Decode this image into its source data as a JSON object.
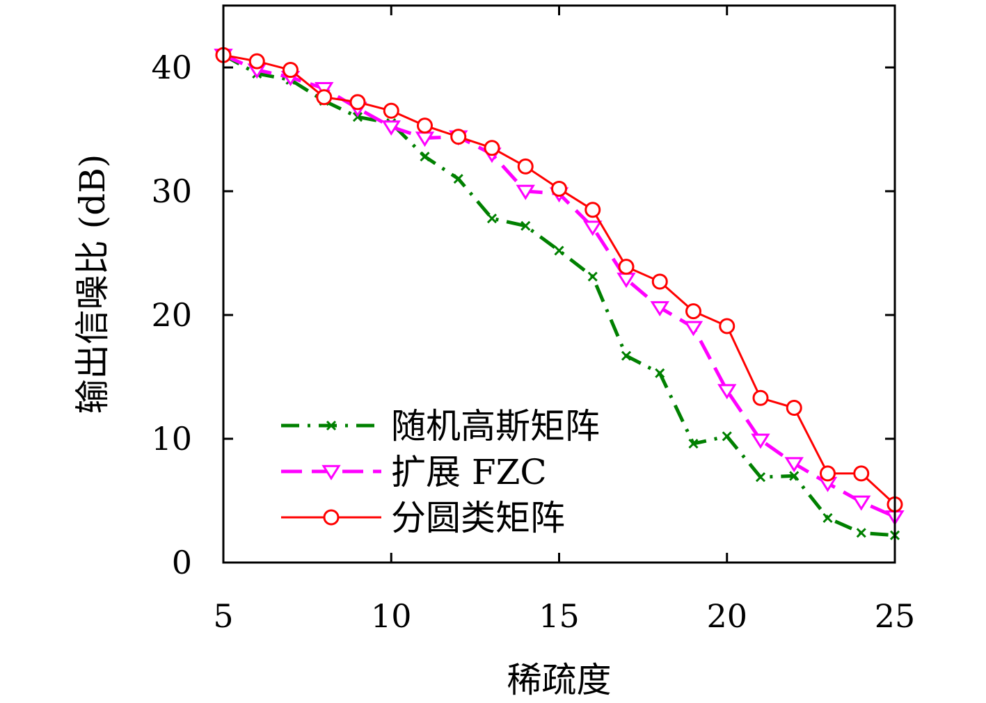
{
  "chart_data": {
    "type": "line",
    "xlabel": "稀疏度",
    "ylabel": "输出信噪比 (dB)",
    "xlim": [
      5,
      25
    ],
    "ylim": [
      0,
      45
    ],
    "xticks": [
      5,
      10,
      15,
      20,
      25
    ],
    "yticks": [
      0,
      10,
      20,
      30,
      40
    ],
    "grid": false,
    "legend_position": "bottom-left",
    "x": [
      5,
      6,
      7,
      8,
      9,
      10,
      11,
      12,
      13,
      14,
      15,
      16,
      17,
      18,
      19,
      20,
      21,
      22,
      23,
      24,
      25
    ],
    "series": [
      {
        "name": "随机高斯矩阵",
        "color": "#008000",
        "dash": "dash-dot",
        "marker": "cross",
        "values": [
          41.0,
          39.5,
          39.0,
          37.3,
          36.0,
          35.5,
          32.8,
          31.0,
          27.8,
          27.2,
          25.2,
          23.1,
          16.7,
          15.3,
          9.6,
          10.2,
          6.9,
          7.0,
          3.6,
          2.4,
          2.2
        ]
      },
      {
        "name": "扩展 FZC",
        "color": "#ff00ff",
        "dash": "dashed",
        "marker": "triangle-down",
        "values": [
          41.0,
          39.8,
          39.2,
          38.3,
          36.7,
          35.2,
          34.3,
          34.4,
          33.0,
          30.0,
          29.8,
          27.1,
          22.9,
          20.6,
          19.0,
          13.9,
          9.9,
          8.0,
          6.4,
          4.9,
          3.7
        ]
      },
      {
        "name": "分圆类矩阵",
        "color": "#ff0000",
        "dash": "solid",
        "marker": "circle",
        "values": [
          41.0,
          40.5,
          39.8,
          37.6,
          37.2,
          36.5,
          35.3,
          34.4,
          33.5,
          32.0,
          30.2,
          28.5,
          23.9,
          22.7,
          20.3,
          19.1,
          13.3,
          12.5,
          7.2,
          7.2,
          4.7
        ]
      }
    ]
  }
}
